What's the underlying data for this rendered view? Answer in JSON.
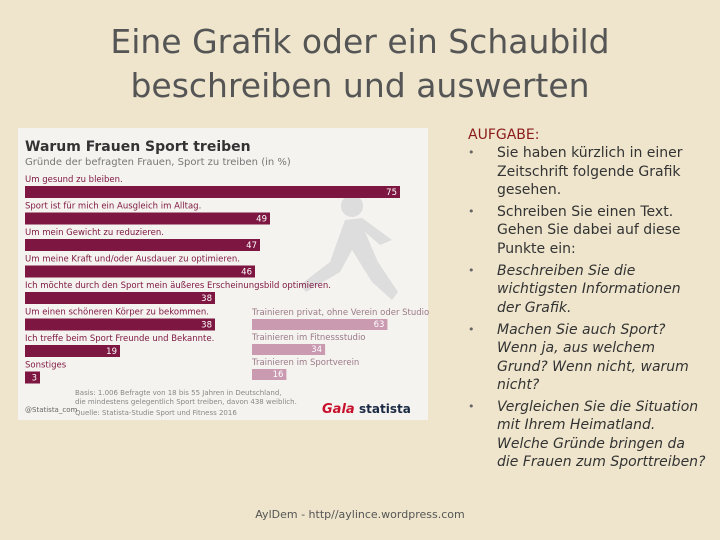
{
  "slide": {
    "title": [
      "Eine Grafik oder ein Schaubild",
      "beschreiben und auswerten"
    ],
    "footer": "AylDem - http//aylince.wordpress.com"
  },
  "task": {
    "heading": "AUFGABE:",
    "items": [
      "Sie haben kürzlich in einer Zeitschrift folgende Grafik gesehen.",
      "Schreiben Sie einen Text. Gehen Sie dabei auf diese Punkte ein:",
      "Beschreiben Sie die wichtigsten Informationen der Grafik.",
      "Machen Sie auch Sport? Wenn ja, aus welchem Grund? Wenn nicht, warum nicht?",
      "Vergleichen Sie die Situation mit Ihrem Heimatland. Welche Gründe bringen da die Frauen zum Sporttreiben?"
    ]
  },
  "chart_data": [
    {
      "type": "bar",
      "title": "Warum Frauen Sport treiben",
      "subtitle": "Gründe der befragten Frauen, Sport zu treiben (in %)",
      "categories": [
        "Um gesund zu bleiben.",
        "Sport ist für mich ein Ausgleich im Alltag.",
        "Um mein Gewicht zu reduzieren.",
        "Um meine Kraft und/oder Ausdauer zu optimieren.",
        "Ich möchte durch den Sport mein äußeres Erscheinungsbild optimieren.",
        "Um einen schöneren Körper zu bekommen.",
        "Ich treffe beim Sport Freunde und Bekannte.",
        "Sonstiges"
      ],
      "values": [
        75,
        49,
        47,
        46,
        38,
        38,
        19,
        3
      ],
      "color": "#7d1640",
      "note": [
        "Basis: 1.006 Befragte von 18 bis 55 Jahren in Deutschland,",
        "die mindestens gelegentlich Sport treiben, davon 438 weiblich."
      ],
      "source": "Quelle: Statista-Studie Sport und Fitness 2016",
      "credit": "@Statista_com",
      "brands": [
        "Gala",
        "statista"
      ]
    },
    {
      "type": "bar",
      "categories": [
        "Trainieren privat, ohne Verein oder Studio",
        "Trainieren im Fitnessstudio",
        "Trainieren im Sportverein"
      ],
      "values": [
        63,
        34,
        16
      ],
      "color": "#c99ab0"
    }
  ]
}
